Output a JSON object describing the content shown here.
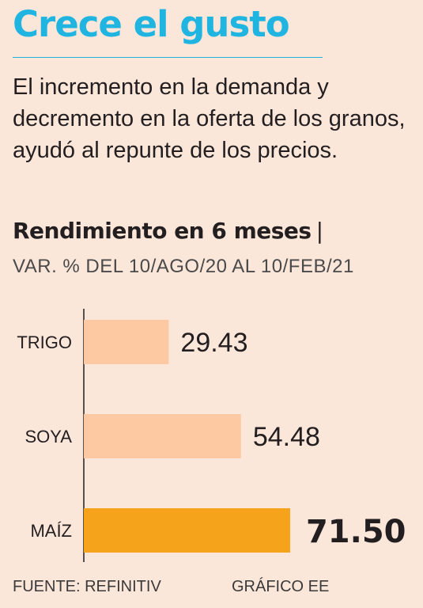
{
  "header": {
    "title": "Crece el gusto",
    "lead": "El incremento en la demanda y decremento en la oferta de los granos, ayudó al repunte de los precios.",
    "subtitle": "Rendimiento en 6 meses",
    "subtitle_separator": "|",
    "unit_line": "VAR. % DEL 10/AGO/20 AL 10/FEB/21"
  },
  "colors": {
    "title": "#1fb5e0",
    "bar_light": "#fcc9a2",
    "bar_highlight": "#f6a31c",
    "background": "#fbe6da"
  },
  "chart_data": {
    "type": "bar",
    "orientation": "horizontal",
    "categories": [
      "TRIGO",
      "SOYA",
      "MAÍZ"
    ],
    "values": [
      29.43,
      54.48,
      71.5
    ],
    "value_labels": [
      "29.43",
      "54.48",
      "71.50"
    ],
    "highlight_index": 2,
    "xlim": [
      0,
      100
    ],
    "grid": false,
    "title": "Rendimiento en 6 meses",
    "xlabel": "",
    "ylabel": ""
  },
  "footer": {
    "source": "FUENTE: REFINITIV",
    "credit": "GRÁFICO EE"
  }
}
